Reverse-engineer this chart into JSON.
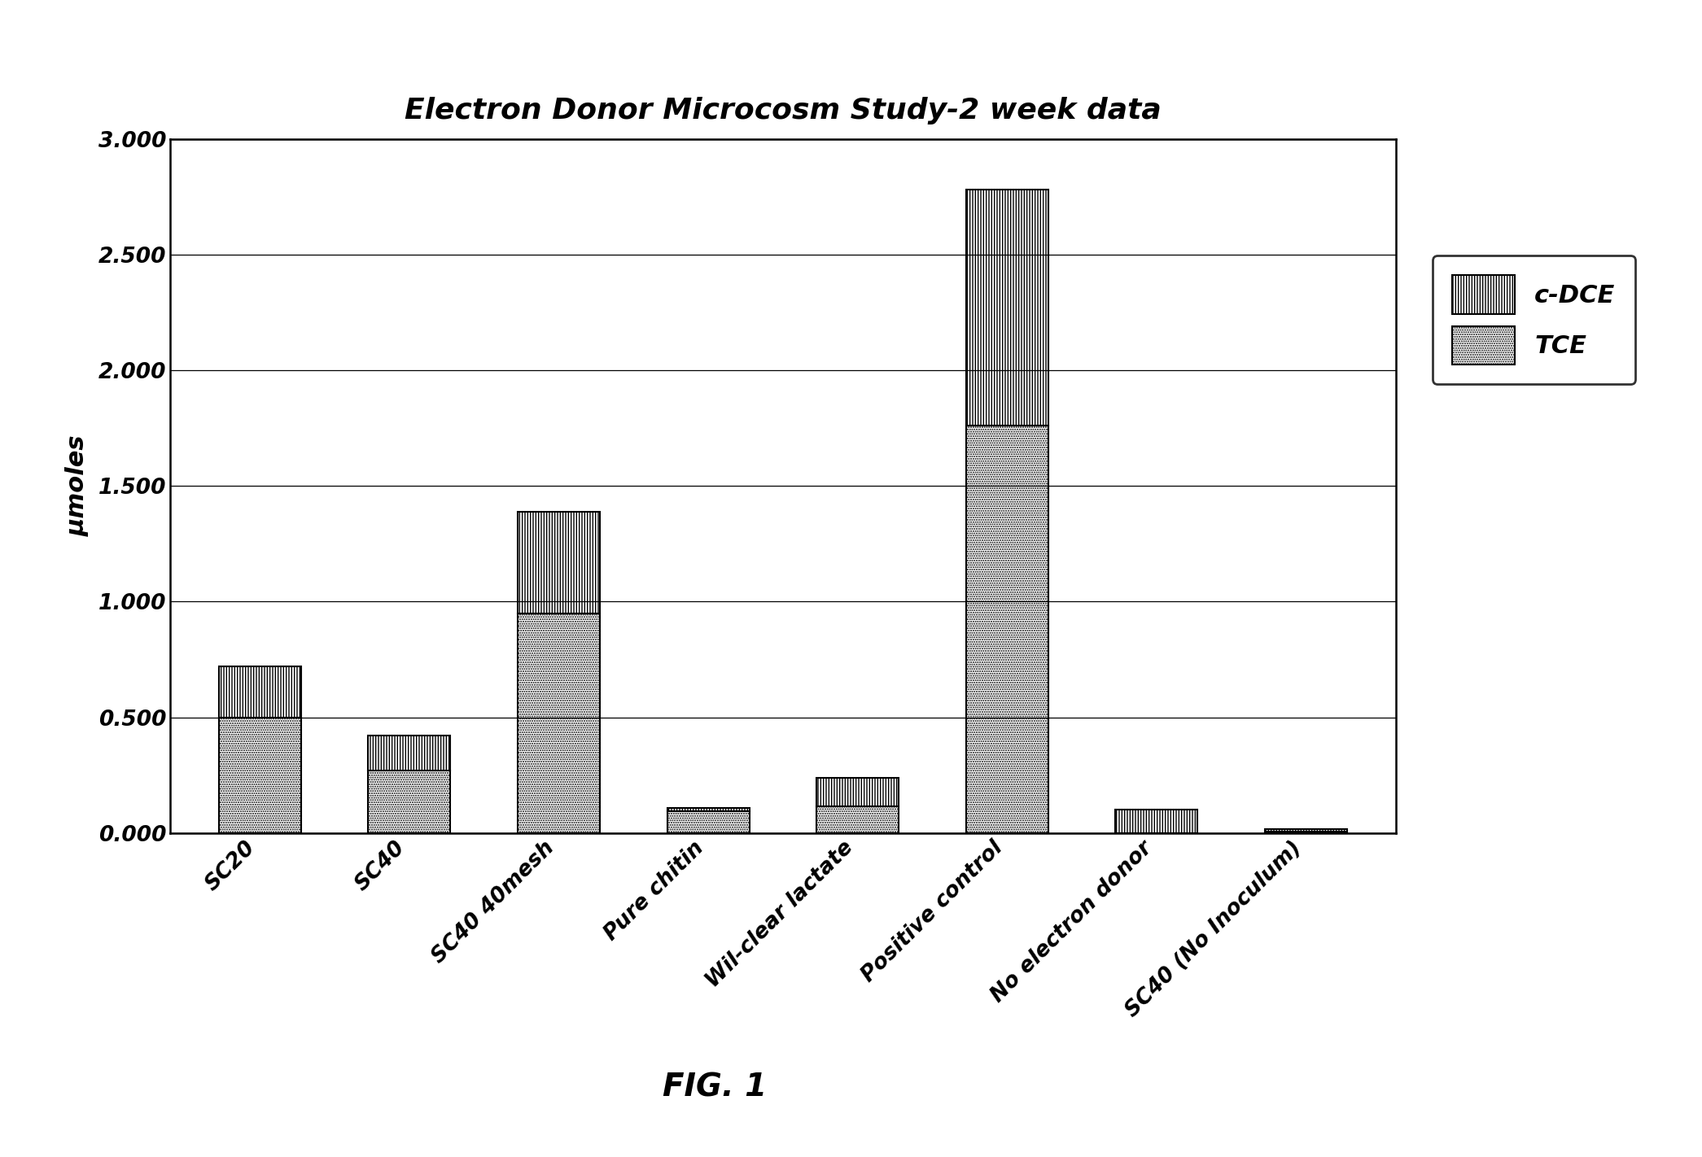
{
  "title": "Electron Donor Microcosm Study-2 week data",
  "ylabel": "μmoles",
  "categories": [
    "SC20",
    "SC40",
    "SC40 40mesh",
    "Pure chitin",
    "Wil-clear lactate",
    "Positive control",
    "No electron donor",
    "SC40 (No Inoculum)"
  ],
  "tce_values": [
    0.5,
    0.27,
    0.95,
    0.095,
    0.115,
    1.76,
    0.0,
    0.008
  ],
  "cdce_values": [
    0.22,
    0.15,
    0.44,
    0.012,
    0.125,
    1.02,
    0.1,
    0.008
  ],
  "ylim": [
    0.0,
    3.0
  ],
  "yticks": [
    0.0,
    0.5,
    1.0,
    1.5,
    2.0,
    2.5,
    3.0
  ],
  "fig_caption": "FIG. 1",
  "background_color": "#ffffff"
}
